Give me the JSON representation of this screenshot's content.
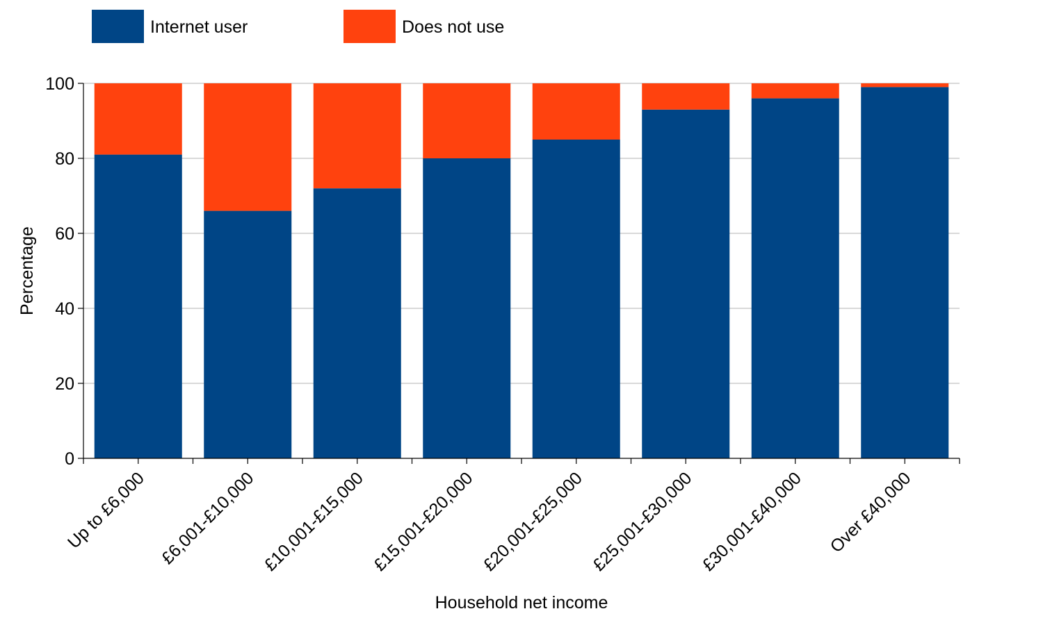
{
  "chart_data": {
    "type": "bar",
    "stacked": true,
    "title": "",
    "xlabel": "Household net income",
    "ylabel": "Percentage",
    "ylim": [
      0,
      100
    ],
    "yticks": [
      0,
      20,
      40,
      60,
      80,
      100
    ],
    "grid": true,
    "legend_position": "top-left",
    "categories": [
      "Up to £6,000",
      "£6,001-£10,000",
      "£10,001-£15,000",
      "£15,001-£20,000",
      "£20,001-£25,000",
      "£25,001-£30,000",
      "£30,001-£40,000",
      "Over £40,000"
    ],
    "series": [
      {
        "name": "Internet user",
        "color": "#004586",
        "values": [
          81,
          66,
          72,
          80,
          85,
          93,
          96,
          99
        ]
      },
      {
        "name": "Does not use",
        "color": "#ff420e",
        "values": [
          19,
          34,
          28,
          20,
          15,
          7,
          4,
          1
        ]
      }
    ]
  }
}
